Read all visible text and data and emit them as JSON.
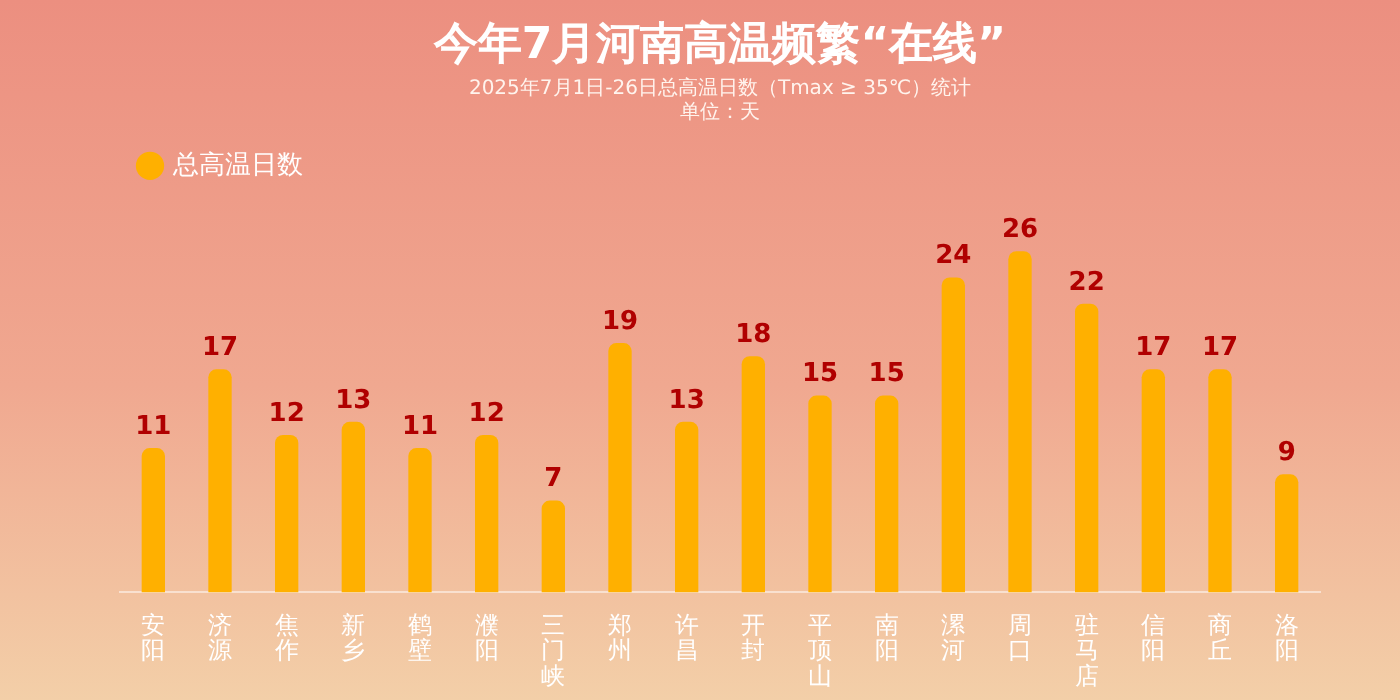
{
  "chart_data": {
    "type": "bar",
    "title": "今年7月河南高温频繁“在线”",
    "subtitle": "2025年7月1日-26日总高温日数（Tmax ≥ 35℃）统计",
    "annotations": [
      "单位：天"
    ],
    "categories": [
      "安阳",
      "济源",
      "焦作",
      "新乡",
      "鹤壁",
      "濮阳",
      "三门峡",
      "郑州",
      "许昌",
      "开封",
      "平顶山",
      "南阳",
      "漯河",
      "周口",
      "驻马店",
      "信阳",
      "商丘",
      "洛阳"
    ],
    "series": [
      {
        "name": "总高温日数",
        "color": "#ffb000",
        "values": [
          11,
          17,
          12,
          13,
          11,
          12,
          7,
          19,
          13,
          18,
          15,
          15,
          24,
          26,
          22,
          17,
          17,
          9
        ]
      }
    ],
    "data_labels": true,
    "legend": "top left",
    "grid": false
  }
}
